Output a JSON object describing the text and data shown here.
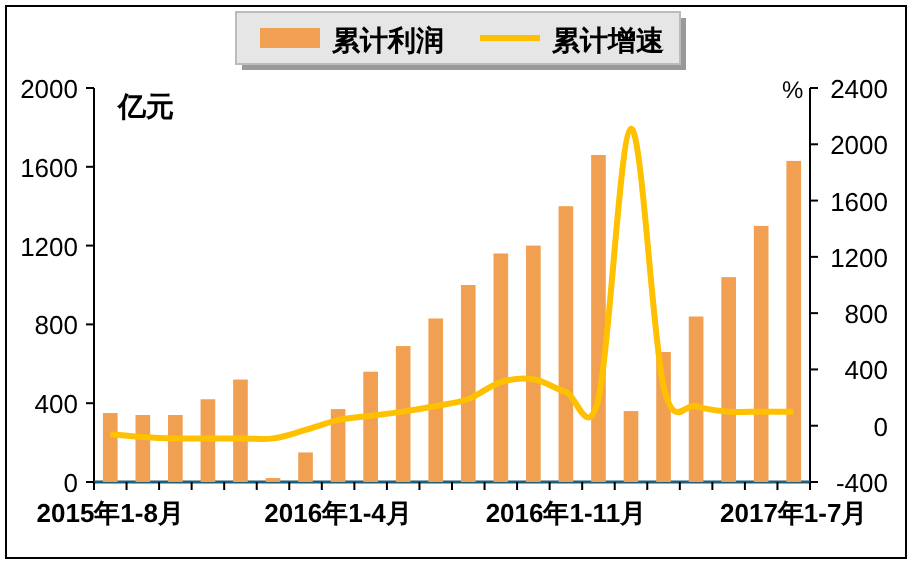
{
  "chart_data": {
    "type": "bar",
    "ylabel": "亿元",
    "y2label": "%",
    "categories": [
      "2015年1-8月",
      null,
      null,
      null,
      null,
      null,
      null,
      "2016年1-4月",
      null,
      null,
      null,
      null,
      null,
      null,
      "2016年1-11月",
      null,
      null,
      null,
      null,
      null,
      null,
      "2017年1-7月"
    ],
    "series": [
      {
        "name": "累计利润",
        "color": "#f0a050",
        "values": [
          350,
          340,
          340,
          420,
          520,
          20,
          150,
          370,
          560,
          690,
          830,
          1000,
          1160,
          1200,
          1400,
          1660,
          360,
          660,
          840,
          1040,
          1300,
          1630
        ]
      },
      {
        "name": "累计增速",
        "type": "line",
        "axis": "y2",
        "color": "#ffc000",
        "values": [
          -60,
          -80,
          -90,
          -90,
          -90,
          -90,
          -30,
          40,
          70,
          100,
          140,
          190,
          310,
          330,
          240,
          190,
          2110,
          280,
          140,
          100,
          100,
          100
        ]
      }
    ],
    "ylim": [
      0,
      2000
    ],
    "yticks": [
      0,
      400,
      800,
      1200,
      1600,
      2000
    ],
    "y2lim": [
      -400,
      2400
    ],
    "y2ticks": [
      -400,
      0,
      400,
      800,
      1200,
      1600,
      2000,
      2400
    ],
    "legend": "top",
    "grid": false
  }
}
